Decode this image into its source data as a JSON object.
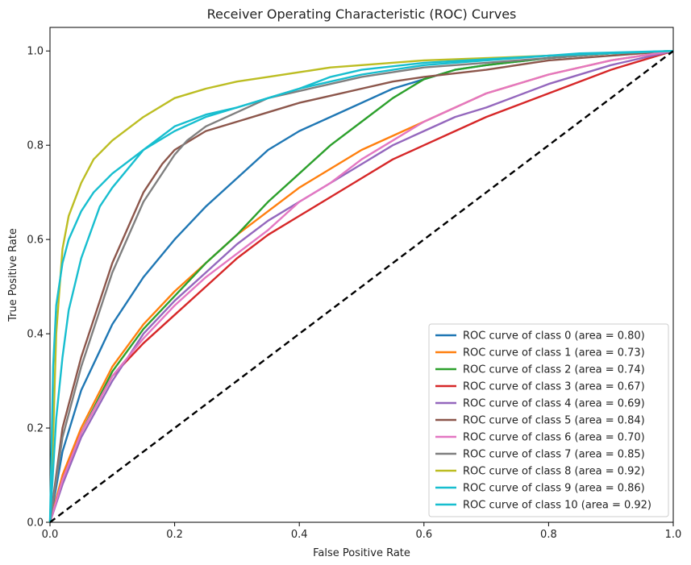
{
  "chart_data": {
    "type": "line",
    "title": "Receiver Operating Characteristic (ROC) Curves",
    "xlabel": "False Positive Rate",
    "ylabel": "True Positive Rate",
    "xlim": [
      0.0,
      1.0
    ],
    "ylim": [
      0.0,
      1.05
    ],
    "x_ticks": [
      "0.0",
      "0.2",
      "0.4",
      "0.6",
      "0.8",
      "1.0"
    ],
    "y_ticks": [
      "0.0",
      "0.2",
      "0.4",
      "0.6",
      "0.8",
      "1.0"
    ],
    "grid": false,
    "legend_position": "lower-right",
    "diagonal": {
      "x": [
        0,
        1
      ],
      "y": [
        0,
        1
      ],
      "color": "#000000",
      "style": "dashed"
    },
    "series": [
      {
        "name": "ROC curve of class 0 (area = 0.80)",
        "color": "#1f77b4",
        "x": [
          0,
          0.02,
          0.05,
          0.1,
          0.15,
          0.2,
          0.25,
          0.3,
          0.35,
          0.4,
          0.45,
          0.5,
          0.55,
          0.6,
          0.65,
          0.7,
          0.8,
          0.9,
          1.0
        ],
        "y": [
          0,
          0.15,
          0.28,
          0.42,
          0.52,
          0.6,
          0.67,
          0.73,
          0.79,
          0.83,
          0.86,
          0.89,
          0.92,
          0.94,
          0.96,
          0.97,
          0.985,
          0.995,
          1.0
        ]
      },
      {
        "name": "ROC curve of class 1 (area = 0.73)",
        "color": "#ff7f0e",
        "x": [
          0,
          0.02,
          0.05,
          0.1,
          0.15,
          0.2,
          0.25,
          0.3,
          0.35,
          0.4,
          0.45,
          0.5,
          0.55,
          0.6,
          0.65,
          0.7,
          0.8,
          0.9,
          1.0
        ],
        "y": [
          0,
          0.1,
          0.2,
          0.33,
          0.42,
          0.49,
          0.55,
          0.61,
          0.66,
          0.71,
          0.75,
          0.79,
          0.82,
          0.85,
          0.88,
          0.91,
          0.95,
          0.98,
          1.0
        ]
      },
      {
        "name": "ROC curve of class 2 (area = 0.74)",
        "color": "#2ca02c",
        "x": [
          0,
          0.02,
          0.05,
          0.1,
          0.15,
          0.2,
          0.25,
          0.3,
          0.35,
          0.4,
          0.45,
          0.5,
          0.55,
          0.6,
          0.65,
          0.7,
          0.8,
          0.9,
          1.0
        ],
        "y": [
          0,
          0.09,
          0.19,
          0.32,
          0.41,
          0.48,
          0.55,
          0.61,
          0.68,
          0.74,
          0.8,
          0.85,
          0.9,
          0.94,
          0.96,
          0.97,
          0.985,
          0.995,
          1.0
        ]
      },
      {
        "name": "ROC curve of class 3 (area = 0.67)",
        "color": "#d62728",
        "x": [
          0,
          0.02,
          0.05,
          0.1,
          0.15,
          0.2,
          0.25,
          0.3,
          0.35,
          0.4,
          0.45,
          0.5,
          0.55,
          0.6,
          0.65,
          0.7,
          0.8,
          0.9,
          1.0
        ],
        "y": [
          0,
          0.09,
          0.19,
          0.31,
          0.38,
          0.44,
          0.5,
          0.56,
          0.61,
          0.65,
          0.69,
          0.73,
          0.77,
          0.8,
          0.83,
          0.86,
          0.91,
          0.96,
          1.0
        ]
      },
      {
        "name": "ROC curve of class 4 (area = 0.69)",
        "color": "#9467bd",
        "x": [
          0,
          0.02,
          0.05,
          0.1,
          0.15,
          0.2,
          0.25,
          0.3,
          0.35,
          0.4,
          0.45,
          0.5,
          0.55,
          0.6,
          0.65,
          0.7,
          0.8,
          0.9,
          1.0
        ],
        "y": [
          0,
          0.08,
          0.18,
          0.3,
          0.4,
          0.47,
          0.53,
          0.59,
          0.64,
          0.68,
          0.72,
          0.76,
          0.8,
          0.83,
          0.86,
          0.88,
          0.93,
          0.97,
          1.0
        ]
      },
      {
        "name": "ROC curve of class 5 (area = 0.84)",
        "color": "#8c564b",
        "x": [
          0,
          0.02,
          0.05,
          0.1,
          0.15,
          0.18,
          0.2,
          0.25,
          0.3,
          0.35,
          0.4,
          0.45,
          0.5,
          0.55,
          0.6,
          0.7,
          0.8,
          0.9,
          1.0
        ],
        "y": [
          0,
          0.2,
          0.35,
          0.55,
          0.7,
          0.76,
          0.79,
          0.83,
          0.85,
          0.87,
          0.89,
          0.905,
          0.92,
          0.935,
          0.945,
          0.96,
          0.98,
          0.99,
          1.0
        ]
      },
      {
        "name": "ROC curve of class 6 (area = 0.70)",
        "color": "#e377c2",
        "x": [
          0,
          0.02,
          0.05,
          0.1,
          0.15,
          0.2,
          0.25,
          0.3,
          0.35,
          0.4,
          0.45,
          0.5,
          0.55,
          0.6,
          0.65,
          0.7,
          0.8,
          0.9,
          1.0
        ],
        "y": [
          0,
          0.09,
          0.19,
          0.31,
          0.39,
          0.46,
          0.52,
          0.57,
          0.62,
          0.68,
          0.72,
          0.77,
          0.81,
          0.85,
          0.88,
          0.91,
          0.95,
          0.98,
          1.0
        ]
      },
      {
        "name": "ROC curve of class 7 (area = 0.85)",
        "color": "#7f7f7f",
        "x": [
          0,
          0.02,
          0.05,
          0.1,
          0.15,
          0.2,
          0.22,
          0.25,
          0.3,
          0.35,
          0.4,
          0.45,
          0.5,
          0.55,
          0.6,
          0.7,
          0.8,
          0.9,
          1.0
        ],
        "y": [
          0,
          0.18,
          0.33,
          0.53,
          0.68,
          0.78,
          0.81,
          0.84,
          0.87,
          0.9,
          0.915,
          0.93,
          0.945,
          0.955,
          0.965,
          0.975,
          0.985,
          0.995,
          1.0
        ]
      },
      {
        "name": "ROC curve of class 8 (area = 0.92)",
        "color": "#bcbd22",
        "x": [
          0,
          0.005,
          0.01,
          0.02,
          0.03,
          0.05,
          0.07,
          0.1,
          0.15,
          0.2,
          0.25,
          0.3,
          0.35,
          0.4,
          0.45,
          0.5,
          0.6,
          0.8,
          1.0
        ],
        "y": [
          0,
          0.18,
          0.4,
          0.58,
          0.65,
          0.72,
          0.77,
          0.81,
          0.86,
          0.9,
          0.92,
          0.935,
          0.945,
          0.955,
          0.965,
          0.97,
          0.98,
          0.99,
          1.0
        ]
      },
      {
        "name": "ROC curve of class 9 (area = 0.86)",
        "color": "#17becf",
        "x": [
          0,
          0.01,
          0.02,
          0.03,
          0.05,
          0.08,
          0.1,
          0.15,
          0.2,
          0.25,
          0.3,
          0.35,
          0.4,
          0.45,
          0.5,
          0.6,
          0.7,
          0.85,
          1.0
        ],
        "y": [
          0,
          0.22,
          0.35,
          0.45,
          0.56,
          0.67,
          0.71,
          0.79,
          0.84,
          0.865,
          0.88,
          0.9,
          0.92,
          0.935,
          0.95,
          0.97,
          0.98,
          0.995,
          1.0
        ]
      },
      {
        "name": "ROC curve of class 10 (area = 0.92)",
        "color": "#17becf",
        "x": [
          0,
          0.005,
          0.01,
          0.02,
          0.03,
          0.05,
          0.07,
          0.1,
          0.15,
          0.2,
          0.25,
          0.3,
          0.35,
          0.4,
          0.45,
          0.5,
          0.6,
          0.8,
          1.0
        ],
        "y": [
          0,
          0.33,
          0.46,
          0.55,
          0.6,
          0.66,
          0.7,
          0.74,
          0.79,
          0.83,
          0.86,
          0.88,
          0.9,
          0.92,
          0.945,
          0.96,
          0.975,
          0.99,
          1.0
        ]
      }
    ]
  }
}
